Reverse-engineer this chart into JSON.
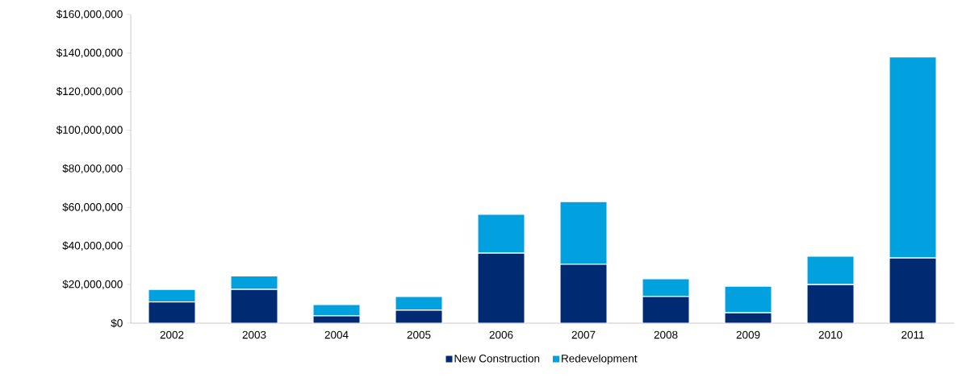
{
  "chart_data": {
    "type": "bar",
    "stacked": true,
    "categories": [
      "2002",
      "2003",
      "2004",
      "2005",
      "2006",
      "2007",
      "2008",
      "2009",
      "2010",
      "2011"
    ],
    "series": [
      {
        "name": "New Construction",
        "color": "#002b73",
        "values": [
          11000000,
          17500000,
          3800000,
          6700000,
          36300000,
          30500000,
          13800000,
          5400000,
          20000000,
          33800000
        ]
      },
      {
        "name": "Redevelopment",
        "color": "#00a1de",
        "values": [
          6500000,
          7000000,
          5800000,
          7100000,
          20100000,
          32500000,
          9200000,
          13800000,
          14700000,
          104200000
        ]
      }
    ],
    "ylim": [
      0,
      160000000
    ],
    "yticks": [
      {
        "value": 0,
        "label": "$0"
      },
      {
        "value": 20000000,
        "label": "$20,000,000"
      },
      {
        "value": 40000000,
        "label": "$40,000,000"
      },
      {
        "value": 60000000,
        "label": "$60,000,000"
      },
      {
        "value": 80000000,
        "label": "$80,000,000"
      },
      {
        "value": 100000000,
        "label": "$100,000,000"
      },
      {
        "value": 120000000,
        "label": "$120,000,000"
      },
      {
        "value": 140000000,
        "label": "$140,000,000"
      },
      {
        "value": 160000000,
        "label": "$160,000,000"
      }
    ],
    "legend": "bottom"
  }
}
